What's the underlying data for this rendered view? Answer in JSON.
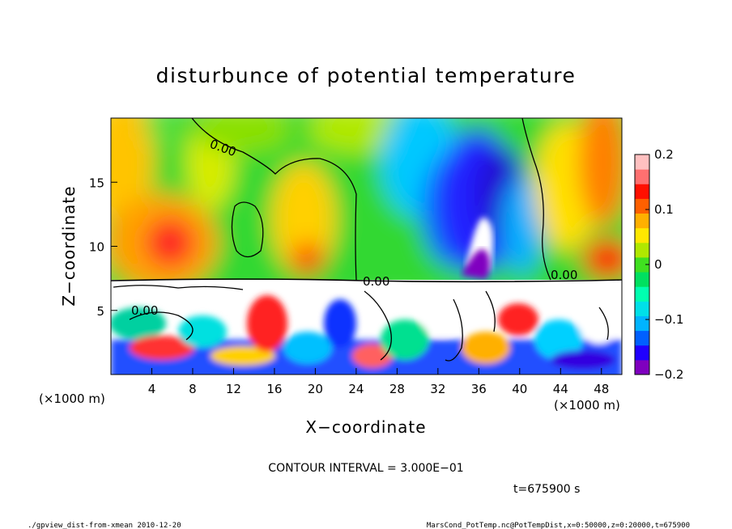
{
  "chart_data": {
    "type": "heatmap",
    "title": "disturbunce of potential temperature",
    "xlabel": "X−coordinate",
    "ylabel": "Z−coordinate",
    "x_unit_left": "(×1000 m)",
    "x_unit_right": "(×1000 m)",
    "xlim": [
      0,
      50
    ],
    "ylim": [
      0,
      20
    ],
    "x_ticks": [
      4,
      8,
      12,
      16,
      20,
      24,
      28,
      32,
      36,
      40,
      44,
      48
    ],
    "y_ticks": [
      5,
      10,
      15
    ],
    "colorbar": {
      "range": [
        -0.2,
        0.2
      ],
      "ticks": [
        "0.2",
        "0.1",
        "0",
        "−0.1",
        "−0.2"
      ],
      "tick_values": [
        0.2,
        0.1,
        0,
        -0.1,
        -0.2
      ],
      "colors": [
        "#7f00bf",
        "#2000ff",
        "#0060ff",
        "#00b4ff",
        "#00e0e8",
        "#00ffb0",
        "#00e060",
        "#40e020",
        "#b0e800",
        "#ffe800",
        "#ffb000",
        "#ff6000",
        "#ff1000",
        "#ff7070",
        "#ffc0c0"
      ]
    },
    "contour_label": "0.00",
    "contour_interval": "CONTOUR INTERVAL = 3.000E−01",
    "time": "t=675900 s"
  },
  "footer": {
    "left": "./gpview_dist-from-xmean  2010-12-20",
    "right": "MarsCond_PotTemp.nc@PotTempDist,x=0:50000,z=0:20000,t=675900"
  }
}
